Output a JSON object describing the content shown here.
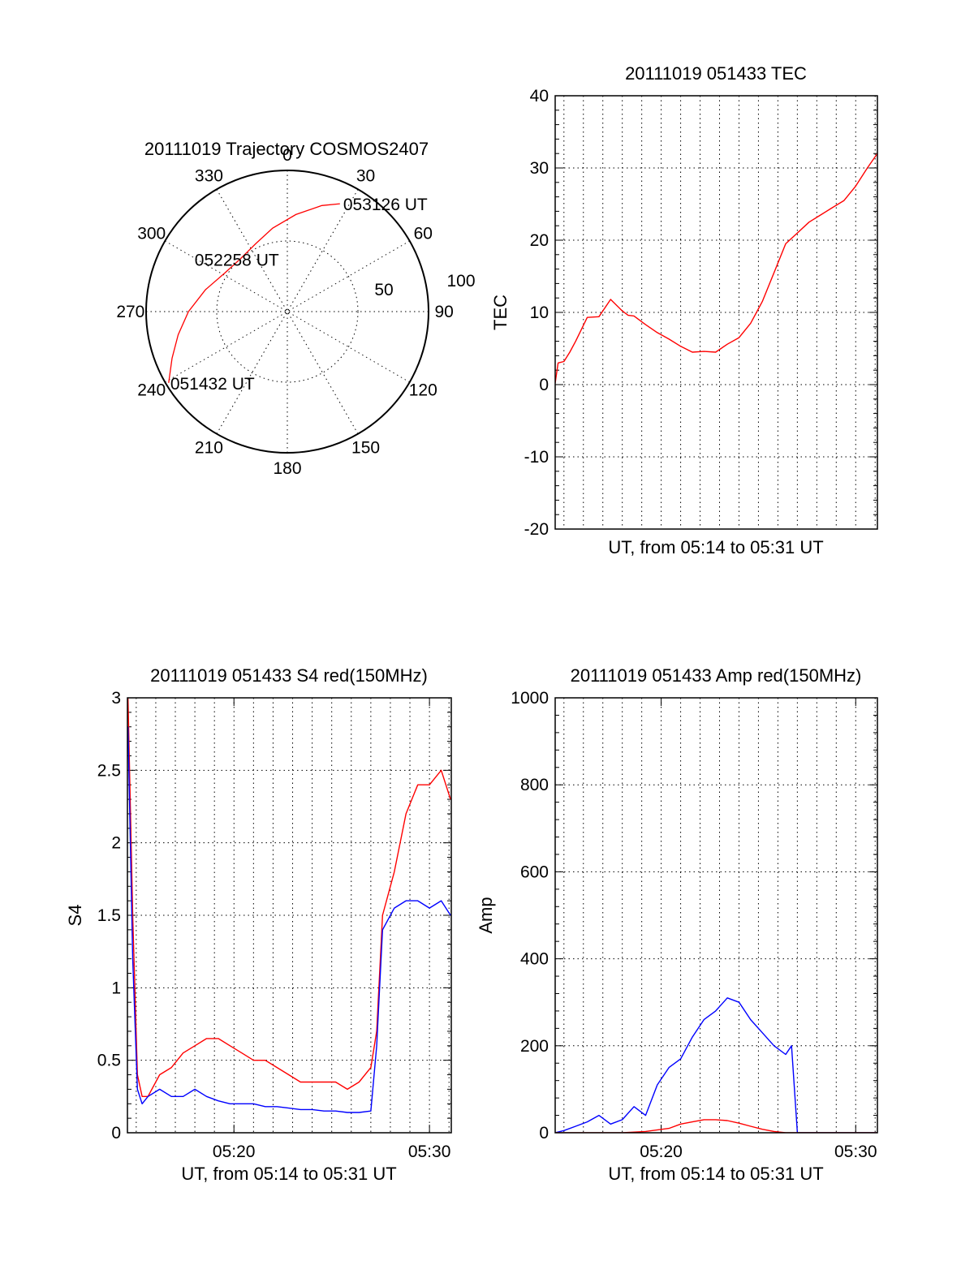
{
  "chart_data": [
    {
      "type": "polar",
      "title": "20111019 Trajectory COSMOS2407",
      "angle_labels": [
        "0",
        "30",
        "60",
        "90",
        "120",
        "150",
        "180",
        "210",
        "240",
        "270",
        "300",
        "330"
      ],
      "radius_labels": [
        "50",
        "100"
      ],
      "rlim": [
        0,
        100
      ],
      "series": [
        {
          "color": "#ff0000",
          "points": [
            {
              "az": 239,
              "r": 98
            },
            {
              "az": 248,
              "r": 88
            },
            {
              "az": 258,
              "r": 79
            },
            {
              "az": 270,
              "r": 70
            },
            {
              "az": 285,
              "r": 60
            },
            {
              "az": 302,
              "r": 52
            },
            {
              "az": 318,
              "r": 50
            },
            {
              "az": 335,
              "r": 53
            },
            {
              "az": 350,
              "r": 60
            },
            {
              "az": 5,
              "r": 69
            },
            {
              "az": 18,
              "r": 79
            },
            {
              "az": 26,
              "r": 85
            }
          ]
        }
      ],
      "annotations": [
        {
          "text": "053126 UT",
          "az": 26,
          "r": 85
        },
        {
          "text": "052258 UT",
          "az": 318,
          "r": 50
        },
        {
          "text": "051432 UT",
          "az": 239,
          "r": 98
        }
      ]
    },
    {
      "type": "line",
      "title": "20111019 051433 TEC",
      "xlabel": "UT, from 05:14 to 05:31 UT",
      "ylabel": "TEC",
      "xlim": [
        5.2425,
        5.5186
      ],
      "ylim": [
        -20,
        40
      ],
      "yticks": [
        "-20",
        "-10",
        "0",
        "10",
        "20",
        "30",
        "40"
      ],
      "xticks": [],
      "grid": true,
      "series": [
        {
          "color": "#ff0000",
          "x": [
            5.2425,
            5.245,
            5.25,
            5.255,
            5.26,
            5.27,
            5.28,
            5.29,
            5.3,
            5.305,
            5.31,
            5.32,
            5.33,
            5.34,
            5.35,
            5.36,
            5.37,
            5.38,
            5.39,
            5.4,
            5.41,
            5.42,
            5.43,
            5.44,
            5.45,
            5.46,
            5.47,
            5.48,
            5.49,
            5.5,
            5.51,
            5.5186
          ],
          "y": [
            0.2,
            3,
            3.2,
            4.5,
            6,
            9.3,
            9.4,
            11.8,
            10.2,
            9.6,
            9.5,
            8.3,
            7.2,
            6.3,
            5.3,
            4.5,
            4.6,
            4.5,
            5.6,
            6.5,
            8.5,
            11.5,
            15.5,
            19.5,
            21,
            22.5,
            23.5,
            24.5,
            25.5,
            27.5,
            30,
            32
          ]
        }
      ]
    },
    {
      "type": "line",
      "title": "20111019 051433 S4 red(150MHz)",
      "xlabel": "UT, from 05:14 to 05:31 UT",
      "ylabel": "S4",
      "xlim": [
        5.2425,
        5.5186
      ],
      "ylim": [
        0,
        3
      ],
      "yticks": [
        "0",
        "0.5",
        "1",
        "1.5",
        "2",
        "2.5",
        "3"
      ],
      "xticks": [
        {
          "v": 5.3333,
          "label": "05:20"
        },
        {
          "v": 5.5,
          "label": "05:30"
        }
      ],
      "grid": true,
      "series": [
        {
          "color": "#ff0000",
          "x": [
            5.243,
            5.247,
            5.251,
            5.255,
            5.26,
            5.27,
            5.28,
            5.29,
            5.3,
            5.31,
            5.32,
            5.33,
            5.34,
            5.35,
            5.36,
            5.37,
            5.38,
            5.39,
            5.4,
            5.41,
            5.42,
            5.43,
            5.44,
            5.45,
            5.455,
            5.46,
            5.47,
            5.48,
            5.49,
            5.5,
            5.51,
            5.518
          ],
          "y": [
            3,
            1.5,
            0.4,
            0.25,
            0.25,
            0.4,
            0.45,
            0.55,
            0.6,
            0.65,
            0.65,
            0.6,
            0.55,
            0.5,
            0.5,
            0.45,
            0.4,
            0.35,
            0.35,
            0.35,
            0.35,
            0.3,
            0.35,
            0.45,
            0.7,
            1.5,
            1.8,
            2.2,
            2.4,
            2.4,
            2.5,
            2.3
          ]
        },
        {
          "color": "#0000ff",
          "x": [
            5.243,
            5.247,
            5.251,
            5.255,
            5.26,
            5.27,
            5.28,
            5.29,
            5.3,
            5.31,
            5.32,
            5.33,
            5.34,
            5.35,
            5.36,
            5.37,
            5.38,
            5.39,
            5.4,
            5.41,
            5.42,
            5.43,
            5.44,
            5.45,
            5.455,
            5.46,
            5.47,
            5.48,
            5.49,
            5.5,
            5.51,
            5.518
          ],
          "y": [
            2.8,
            1.2,
            0.3,
            0.2,
            0.25,
            0.3,
            0.25,
            0.25,
            0.3,
            0.25,
            0.22,
            0.2,
            0.2,
            0.2,
            0.18,
            0.18,
            0.17,
            0.16,
            0.16,
            0.15,
            0.15,
            0.14,
            0.14,
            0.15,
            0.6,
            1.4,
            1.55,
            1.6,
            1.6,
            1.55,
            1.6,
            1.5
          ]
        }
      ]
    },
    {
      "type": "line",
      "title": "20111019 051433 Amp red(150MHz)",
      "xlabel": "UT, from 05:14 to 05:31 UT",
      "ylabel": "Amp",
      "xlim": [
        5.2425,
        5.5186
      ],
      "ylim": [
        0,
        1000
      ],
      "yticks": [
        "0",
        "200",
        "400",
        "600",
        "800",
        "1000"
      ],
      "xticks": [
        {
          "v": 5.3333,
          "label": "05:20"
        },
        {
          "v": 5.5,
          "label": "05:30"
        }
      ],
      "grid": true,
      "series": [
        {
          "color": "#0000ff",
          "x": [
            5.2425,
            5.25,
            5.26,
            5.27,
            5.28,
            5.29,
            5.3,
            5.31,
            5.32,
            5.33,
            5.34,
            5.35,
            5.36,
            5.37,
            5.38,
            5.39,
            5.4,
            5.41,
            5.42,
            5.43,
            5.44,
            5.445,
            5.45,
            5.5186
          ],
          "y": [
            0,
            5,
            15,
            25,
            40,
            20,
            30,
            60,
            40,
            110,
            150,
            170,
            220,
            260,
            280,
            310,
            300,
            260,
            230,
            200,
            180,
            200,
            0,
            0
          ]
        },
        {
          "color": "#ff0000",
          "x": [
            5.2425,
            5.3,
            5.32,
            5.34,
            5.35,
            5.36,
            5.37,
            5.38,
            5.39,
            5.4,
            5.41,
            5.42,
            5.43,
            5.44,
            5.5186
          ],
          "y": [
            0,
            0,
            3,
            10,
            20,
            25,
            30,
            30,
            28,
            22,
            15,
            8,
            3,
            0,
            0
          ]
        }
      ]
    }
  ]
}
